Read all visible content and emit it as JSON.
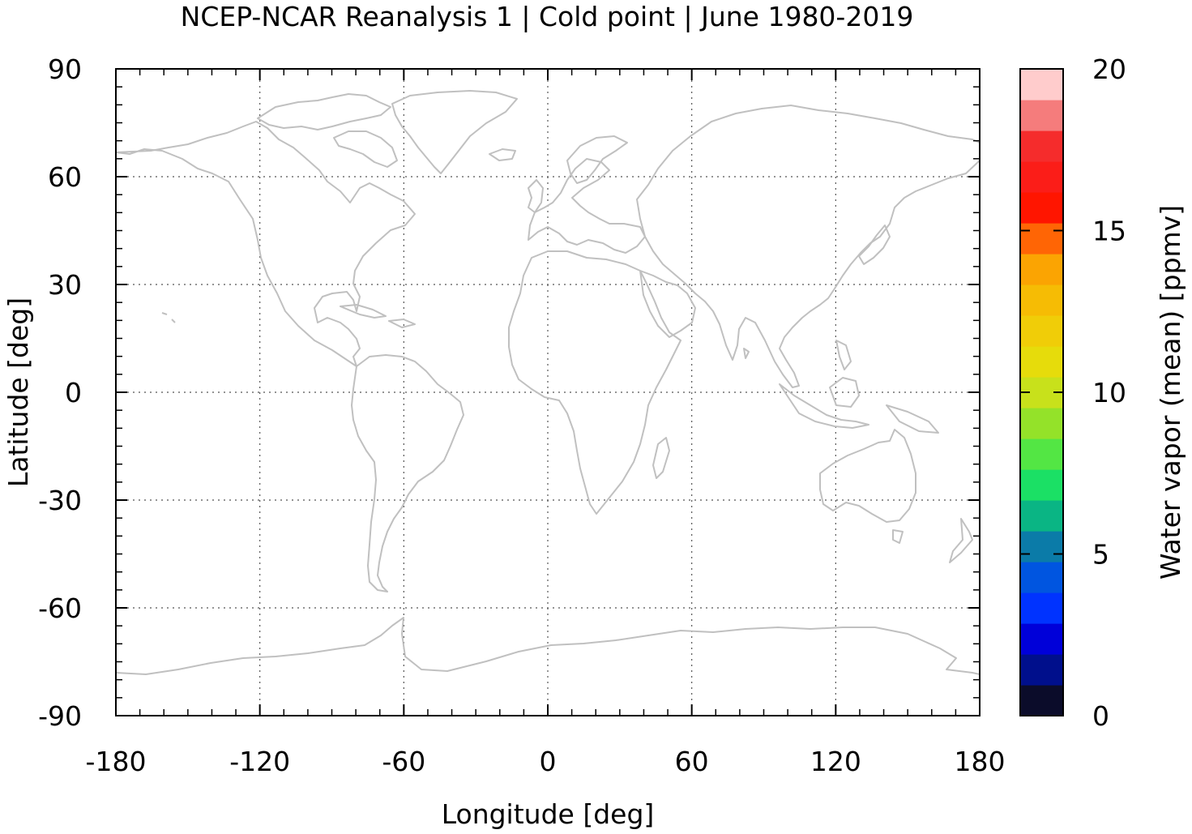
{
  "title": "NCEP-NCAR Reanalysis 1 | Cold point | June 1980-2019",
  "x_axis": {
    "label": "Longitude [deg]",
    "range": [
      -180,
      180
    ],
    "ticks": [
      "-180",
      "-120",
      "-60",
      "0",
      "60",
      "120",
      "180"
    ]
  },
  "y_axis": {
    "label": "Latitude [deg]",
    "range": [
      -90,
      90
    ],
    "ticks": [
      "90",
      "60",
      "30",
      "0",
      "-30",
      "-60",
      "-90"
    ]
  },
  "colorbar": {
    "label": "Water vapor (mean) [ppmv]",
    "range": [
      0,
      20
    ],
    "ticks": [
      "20",
      "15",
      "10",
      "5",
      "0"
    ],
    "colors": [
      "#0b0c2a",
      "#000f8c",
      "#0000d9",
      "#0033ff",
      "#0055e0",
      "#0b7ba8",
      "#0ab584",
      "#1be065",
      "#53e644",
      "#94e229",
      "#c8e11b",
      "#e6dc0b",
      "#f0cd08",
      "#f6bc04",
      "#fba402",
      "#ff6505",
      "#ff1500",
      "#fb1d18",
      "#f52c2c",
      "#f57c7c",
      "#ffcccc"
    ]
  },
  "map": {
    "coastline_color": "#c0c0c0",
    "gridlines": "dotted",
    "data_field": "none visible"
  }
}
